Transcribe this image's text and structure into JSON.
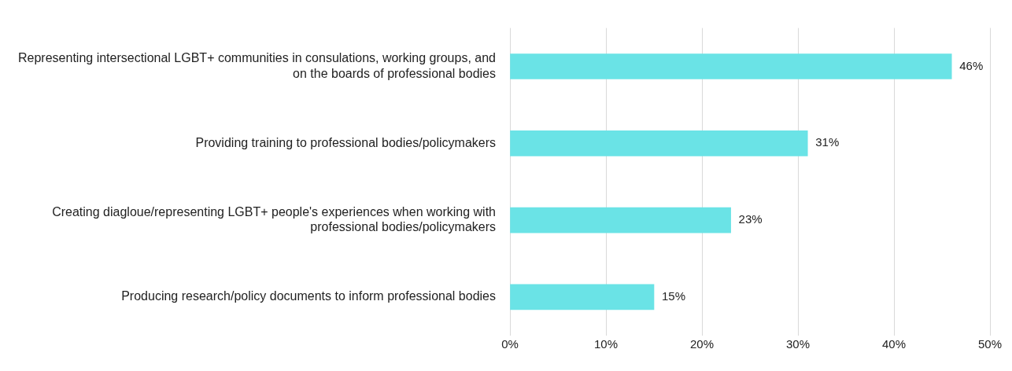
{
  "chart_data": {
    "type": "bar",
    "orientation": "horizontal",
    "categories": [
      "Representing intersectional LGBT+ communities in consulations, working groups, and on the boards of professional bodies",
      "Providing training to professional bodies/policymakers",
      "Creating diagloue/representing LGBT+ people's experiences when working with professional bodies/policymakers",
      "Producing research/policy documents to inform professional bodies"
    ],
    "values": [
      46,
      31,
      23,
      15
    ],
    "value_labels": [
      "46%",
      "31%",
      "23%",
      "15%"
    ],
    "color": "#6ae3e6",
    "xlim": [
      0,
      50
    ],
    "xticks": [
      {
        "value": 0,
        "label": "0%"
      },
      {
        "value": 10,
        "label": "10%"
      },
      {
        "value": 20,
        "label": "20%"
      },
      {
        "value": 30,
        "label": "30%"
      },
      {
        "value": 40,
        "label": "40%"
      },
      {
        "value": 50,
        "label": "50%"
      }
    ],
    "grid": "x",
    "legend": false
  }
}
